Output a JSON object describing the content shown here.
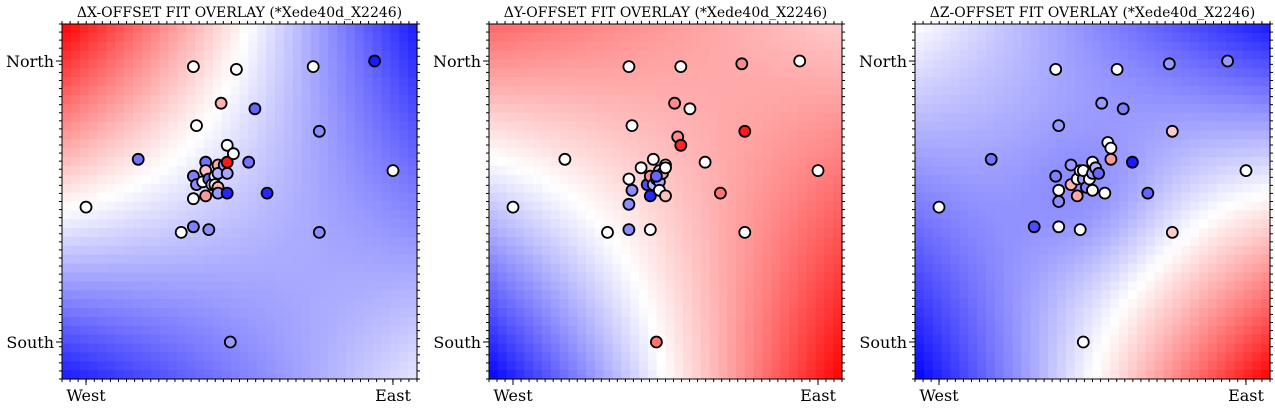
{
  "panels": [
    {
      "title": "ΔX-OFFSET FIT OVERLAY (*Xede40d_X2246)",
      "chart_data": {
        "type": "scatter",
        "xticklabels": [
          "West",
          "East"
        ],
        "yticklabels": [
          "North",
          "South"
        ],
        "background": "diverging blue-white-red fit surface",
        "points": [
          {
            "x": 0.0,
            "y": 0.48,
            "c": 0.0
          },
          {
            "x": 0.17,
            "y": 0.65,
            "c": -0.55
          },
          {
            "x": 0.31,
            "y": 0.39,
            "c": 0.0
          },
          {
            "x": 0.35,
            "y": 0.98,
            "c": 0.0
          },
          {
            "x": 0.36,
            "y": 0.77,
            "c": 0.0
          },
          {
            "x": 0.35,
            "y": 0.59,
            "c": -0.5
          },
          {
            "x": 0.36,
            "y": 0.56,
            "c": -0.45
          },
          {
            "x": 0.35,
            "y": 0.51,
            "c": 0.0
          },
          {
            "x": 0.35,
            "y": 0.41,
            "c": -0.5
          },
          {
            "x": 0.38,
            "y": 0.57,
            "c": 0.0
          },
          {
            "x": 0.39,
            "y": 0.52,
            "c": 0.4
          },
          {
            "x": 0.39,
            "y": 0.64,
            "c": -0.55
          },
          {
            "x": 0.39,
            "y": 0.61,
            "c": 0.25
          },
          {
            "x": 0.4,
            "y": 0.4,
            "c": -0.45
          },
          {
            "x": 0.4,
            "y": 0.58,
            "c": -0.6
          },
          {
            "x": 0.41,
            "y": 0.56,
            "c": 0.15
          },
          {
            "x": 0.42,
            "y": 0.59,
            "c": 0.0
          },
          {
            "x": 0.42,
            "y": 0.56,
            "c": -0.1
          },
          {
            "x": 0.43,
            "y": 0.63,
            "c": 0.35
          },
          {
            "x": 0.43,
            "y": 0.6,
            "c": -0.3
          },
          {
            "x": 0.43,
            "y": 0.55,
            "c": 0.3
          },
          {
            "x": 0.43,
            "y": 0.53,
            "c": -0.4
          },
          {
            "x": 0.44,
            "y": 0.85,
            "c": 0.3
          },
          {
            "x": 0.45,
            "y": 0.63,
            "c": -0.4
          },
          {
            "x": 0.46,
            "y": 0.6,
            "c": -0.35
          },
          {
            "x": 0.46,
            "y": 0.7,
            "c": 0.0
          },
          {
            "x": 0.46,
            "y": 0.53,
            "c": -0.85
          },
          {
            "x": 0.46,
            "y": 0.64,
            "c": 0.9
          },
          {
            "x": 0.48,
            "y": 0.67,
            "c": 0.0
          },
          {
            "x": 0.49,
            "y": 0.97,
            "c": 0.0
          },
          {
            "x": 0.53,
            "y": 0.64,
            "c": -0.55
          },
          {
            "x": 0.55,
            "y": 0.83,
            "c": -0.6
          },
          {
            "x": 0.59,
            "y": 0.53,
            "c": -0.85
          },
          {
            "x": 0.74,
            "y": 0.98,
            "c": 0.0
          },
          {
            "x": 0.76,
            "y": 0.75,
            "c": -0.45
          },
          {
            "x": 0.76,
            "y": 0.39,
            "c": -0.45
          },
          {
            "x": 0.94,
            "y": 1.0,
            "c": -0.9
          },
          {
            "x": 1.0,
            "y": 0.61,
            "c": 0.0
          },
          {
            "x": 0.47,
            "y": 0.0,
            "c": -0.4
          }
        ],
        "field": {
          "tl": 1.0,
          "tr": -0.9,
          "bl": -0.9,
          "br": -0.1,
          "center": 0.0,
          "ridge": {
            "x": 0.35,
            "y": 0.55,
            "width": 0.25
          }
        }
      }
    },
    {
      "title": "ΔY-OFFSET FIT OVERLAY (*Xede40d_X2246)",
      "chart_data": {
        "type": "scatter",
        "xticklabels": [
          "West",
          "East"
        ],
        "yticklabels": [
          "North",
          "South"
        ],
        "background": "diverging blue-white-red fit surface",
        "points": [
          {
            "x": 0.0,
            "y": 0.48,
            "c": 0.0
          },
          {
            "x": 0.17,
            "y": 0.65,
            "c": 0.0
          },
          {
            "x": 0.31,
            "y": 0.39,
            "c": 0.0
          },
          {
            "x": 0.38,
            "y": 0.98,
            "c": 0.0
          },
          {
            "x": 0.38,
            "y": 0.58,
            "c": 0.0
          },
          {
            "x": 0.39,
            "y": 0.77,
            "c": 0.0
          },
          {
            "x": 0.39,
            "y": 0.54,
            "c": -0.45
          },
          {
            "x": 0.38,
            "y": 0.49,
            "c": -0.45
          },
          {
            "x": 0.38,
            "y": 0.4,
            "c": -0.45
          },
          {
            "x": 0.42,
            "y": 0.62,
            "c": 0.0
          },
          {
            "x": 0.44,
            "y": 0.56,
            "c": -0.7
          },
          {
            "x": 0.45,
            "y": 0.52,
            "c": -0.85
          },
          {
            "x": 0.45,
            "y": 0.59,
            "c": 0.45
          },
          {
            "x": 0.45,
            "y": 0.4,
            "c": 0.0
          },
          {
            "x": 0.46,
            "y": 0.56,
            "c": -0.3
          },
          {
            "x": 0.47,
            "y": 0.58,
            "c": 0.15
          },
          {
            "x": 0.48,
            "y": 0.61,
            "c": -0.2
          },
          {
            "x": 0.48,
            "y": 0.57,
            "c": -0.35
          },
          {
            "x": 0.48,
            "y": 0.54,
            "c": 0.0
          },
          {
            "x": 0.49,
            "y": 0.6,
            "c": 0.35
          },
          {
            "x": 0.5,
            "y": 0.52,
            "c": 0.25
          },
          {
            "x": 0.5,
            "y": 0.63,
            "c": 0.0
          },
          {
            "x": 0.53,
            "y": 0.85,
            "c": 0.45
          },
          {
            "x": 0.54,
            "y": 0.73,
            "c": 0.45
          },
          {
            "x": 0.55,
            "y": 0.7,
            "c": 0.85
          },
          {
            "x": 0.55,
            "y": 0.98,
            "c": 0.0
          },
          {
            "x": 0.58,
            "y": 0.83,
            "c": 0.0
          },
          {
            "x": 0.63,
            "y": 0.64,
            "c": 0.0
          },
          {
            "x": 0.68,
            "y": 0.53,
            "c": 0.55
          },
          {
            "x": 0.75,
            "y": 0.99,
            "c": 0.45
          },
          {
            "x": 0.76,
            "y": 0.75,
            "c": 0.9
          },
          {
            "x": 0.76,
            "y": 0.39,
            "c": 0.0
          },
          {
            "x": 0.94,
            "y": 1.0,
            "c": 0.0
          },
          {
            "x": 1.0,
            "y": 0.61,
            "c": 0.0
          },
          {
            "x": 0.47,
            "y": 0.0,
            "c": 0.55
          },
          {
            "x": 0.5,
            "y": 0.62,
            "c": 0.0
          },
          {
            "x": 0.47,
            "y": 0.59,
            "c": -0.6
          },
          {
            "x": 0.46,
            "y": 0.65,
            "c": 0.0
          }
        ],
        "field": {
          "tl": 0.6,
          "tr": 0.2,
          "bl": -1.0,
          "br": 1.0,
          "center": 0.0
        }
      }
    },
    {
      "title": "ΔZ-OFFSET FIT OVERLAY (*Xede40d_X2246)",
      "chart_data": {
        "type": "scatter",
        "xticklabels": [
          "West",
          "East"
        ],
        "yticklabels": [
          "North",
          "South"
        ],
        "background": "diverging blue-white-red fit surface",
        "points": [
          {
            "x": 0.0,
            "y": 0.48,
            "c": 0.0
          },
          {
            "x": 0.17,
            "y": 0.65,
            "c": -0.55
          },
          {
            "x": 0.31,
            "y": 0.41,
            "c": -0.7
          },
          {
            "x": 0.38,
            "y": 0.97,
            "c": 0.0
          },
          {
            "x": 0.39,
            "y": 0.77,
            "c": -0.4
          },
          {
            "x": 0.38,
            "y": 0.59,
            "c": -0.5
          },
          {
            "x": 0.39,
            "y": 0.54,
            "c": 0.0
          },
          {
            "x": 0.39,
            "y": 0.5,
            "c": -0.45
          },
          {
            "x": 0.39,
            "y": 0.41,
            "c": 0.0
          },
          {
            "x": 0.43,
            "y": 0.63,
            "c": -0.4
          },
          {
            "x": 0.43,
            "y": 0.56,
            "c": 0.3
          },
          {
            "x": 0.45,
            "y": 0.58,
            "c": 0.0
          },
          {
            "x": 0.46,
            "y": 0.61,
            "c": 0.0
          },
          {
            "x": 0.45,
            "y": 0.52,
            "c": 0.35
          },
          {
            "x": 0.46,
            "y": 0.4,
            "c": 0.0
          },
          {
            "x": 0.47,
            "y": 0.58,
            "c": -0.4
          },
          {
            "x": 0.47,
            "y": 0.61,
            "c": 0.0
          },
          {
            "x": 0.48,
            "y": 0.55,
            "c": -0.5
          },
          {
            "x": 0.49,
            "y": 0.58,
            "c": 0.0
          },
          {
            "x": 0.5,
            "y": 0.54,
            "c": 0.0
          },
          {
            "x": 0.5,
            "y": 0.6,
            "c": -0.4
          },
          {
            "x": 0.5,
            "y": 0.64,
            "c": 0.0
          },
          {
            "x": 0.51,
            "y": 0.62,
            "c": -0.3
          },
          {
            "x": 0.52,
            "y": 0.6,
            "c": -0.6
          },
          {
            "x": 0.53,
            "y": 0.85,
            "c": -0.4
          },
          {
            "x": 0.54,
            "y": 0.53,
            "c": 0.0
          },
          {
            "x": 0.55,
            "y": 0.71,
            "c": 0.0
          },
          {
            "x": 0.56,
            "y": 0.65,
            "c": 0.4
          },
          {
            "x": 0.56,
            "y": 0.69,
            "c": 0.0
          },
          {
            "x": 0.58,
            "y": 0.97,
            "c": 0.0
          },
          {
            "x": 0.6,
            "y": 0.83,
            "c": -0.5
          },
          {
            "x": 0.63,
            "y": 0.64,
            "c": -0.9
          },
          {
            "x": 0.68,
            "y": 0.53,
            "c": -0.6
          },
          {
            "x": 0.75,
            "y": 0.99,
            "c": -0.4
          },
          {
            "x": 0.76,
            "y": 0.75,
            "c": 0.2
          },
          {
            "x": 0.76,
            "y": 0.39,
            "c": 0.2
          },
          {
            "x": 0.94,
            "y": 1.0,
            "c": -0.4
          },
          {
            "x": 1.0,
            "y": 0.61,
            "c": 0.0
          },
          {
            "x": 0.47,
            "y": 0.0,
            "c": 0.0
          }
        ],
        "field": {
          "tl": 0.0,
          "tr": -0.9,
          "bl": -1.0,
          "br": 1.0,
          "center": -0.2
        }
      }
    }
  ],
  "colors": {
    "negative": "#0000ff",
    "neutral": "#ffffff",
    "positive": "#ff0000",
    "marker_edge": "#000000"
  }
}
